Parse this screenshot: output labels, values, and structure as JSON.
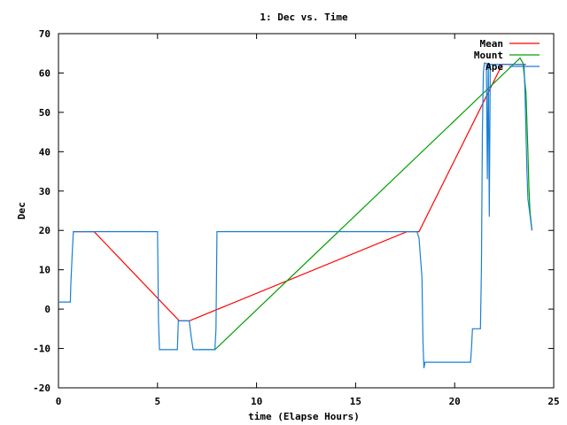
{
  "chart_data": {
    "type": "line",
    "title": "1: Dec vs. Time",
    "xlabel": "time (Elapse Hours)",
    "ylabel": "Dec",
    "xlim": [
      0,
      25
    ],
    "ylim": [
      -20,
      70
    ],
    "xticks": [
      0,
      5,
      10,
      15,
      20,
      25
    ],
    "yticks": [
      -20,
      -10,
      0,
      10,
      20,
      30,
      40,
      50,
      60,
      70
    ],
    "grid": false,
    "legend_position": "top-right",
    "series": [
      {
        "name": "Mean",
        "color": "#ff0000",
        "points": [
          [
            0.75,
            19.7
          ],
          [
            1.8,
            19.7
          ],
          [
            6.1,
            -3.0
          ],
          [
            6.6,
            -3.0
          ],
          [
            17.6,
            19.7
          ],
          [
            18.2,
            19.7
          ],
          [
            22.4,
            62.2
          ],
          [
            23.6,
            62.2
          ]
        ]
      },
      {
        "name": "Mount",
        "color": "#00a000",
        "points": [
          [
            7.1,
            -10.3
          ],
          [
            7.9,
            -10.3
          ],
          [
            23.3,
            63.8
          ],
          [
            23.45,
            62.5
          ],
          [
            23.6,
            55.0
          ],
          [
            23.7,
            40.0
          ],
          [
            23.75,
            31.0
          ],
          [
            23.8,
            25.0
          ],
          [
            23.9,
            20.0
          ]
        ]
      },
      {
        "name": "Ape",
        "color": "#1a7fd4",
        "points": [
          [
            0,
            1.8
          ],
          [
            0.6,
            1.8
          ],
          [
            0.62,
            6.0
          ],
          [
            0.7,
            15.0
          ],
          [
            0.75,
            19.7
          ],
          [
            5.0,
            19.7
          ],
          [
            5.02,
            12.0
          ],
          [
            5.05,
            -3.0
          ],
          [
            5.1,
            -10.3
          ],
          [
            6.0,
            -10.3
          ],
          [
            6.05,
            -3.0
          ],
          [
            6.6,
            -3.0
          ],
          [
            6.7,
            -7.0
          ],
          [
            6.8,
            -10.3
          ],
          [
            7.9,
            -10.3
          ],
          [
            7.95,
            -5.0
          ],
          [
            8.0,
            19.7
          ],
          [
            17.8,
            19.7
          ],
          [
            18.1,
            19.7
          ],
          [
            18.2,
            18.0
          ],
          [
            18.35,
            8.0
          ],
          [
            18.4,
            -8.0
          ],
          [
            18.45,
            -15.0
          ],
          [
            18.5,
            -13.5
          ],
          [
            20.8,
            -13.5
          ],
          [
            20.85,
            -10.0
          ],
          [
            20.9,
            -5.0
          ],
          [
            21.3,
            -5.0
          ],
          [
            21.35,
            10.0
          ],
          [
            21.4,
            45.0
          ],
          [
            21.45,
            60.0
          ],
          [
            21.5,
            62.5
          ],
          [
            21.6,
            62.5
          ],
          [
            21.65,
            33.0
          ],
          [
            21.7,
            62.5
          ],
          [
            21.75,
            23.5
          ],
          [
            21.8,
            62.2
          ],
          [
            23.5,
            62.2
          ],
          [
            23.55,
            55.0
          ],
          [
            23.6,
            45.0
          ],
          [
            23.65,
            35.0
          ],
          [
            23.7,
            28.0
          ],
          [
            23.8,
            24.0
          ],
          [
            23.9,
            20.0
          ]
        ]
      }
    ]
  }
}
